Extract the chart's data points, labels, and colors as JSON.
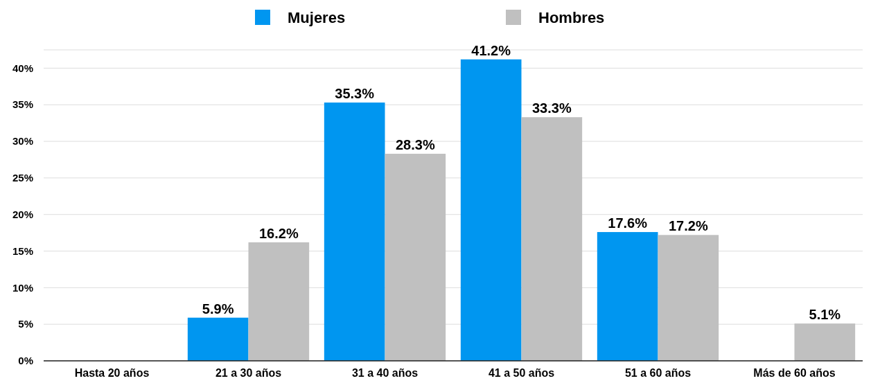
{
  "chart_data": {
    "type": "bar",
    "categories": [
      "Hasta 20 años",
      "21 a 30 años",
      "31 a 40 años",
      "41 a 50 años",
      "51 a 60 años",
      "Más de 60 años"
    ],
    "series": [
      {
        "name": "Mujeres",
        "color": "#0096f0",
        "values": [
          null,
          5.9,
          35.3,
          41.2,
          17.6,
          null
        ],
        "value_labels": [
          null,
          "5.9%",
          "35.3%",
          "41.2%",
          "17.6%",
          null
        ]
      },
      {
        "name": "Hombres",
        "color": "#c0c0c0",
        "values": [
          null,
          16.2,
          28.3,
          33.3,
          17.2,
          5.1
        ],
        "value_labels": [
          null,
          "16.2%",
          "28.3%",
          "33.3%",
          "17.2%",
          "5.1%"
        ]
      }
    ],
    "ylim": [
      0,
      42.5
    ],
    "yticks": [
      {
        "value": 0,
        "label": "0%"
      },
      {
        "value": 5,
        "label": "5%"
      },
      {
        "value": 10,
        "label": "10%"
      },
      {
        "value": 15,
        "label": "15%"
      },
      {
        "value": 20,
        "label": "20%"
      },
      {
        "value": 25,
        "label": "25%"
      },
      {
        "value": 30,
        "label": "30%"
      },
      {
        "value": 35,
        "label": "35%"
      },
      {
        "value": 40,
        "label": "40%"
      }
    ],
    "grid": "y",
    "legend": "top"
  }
}
